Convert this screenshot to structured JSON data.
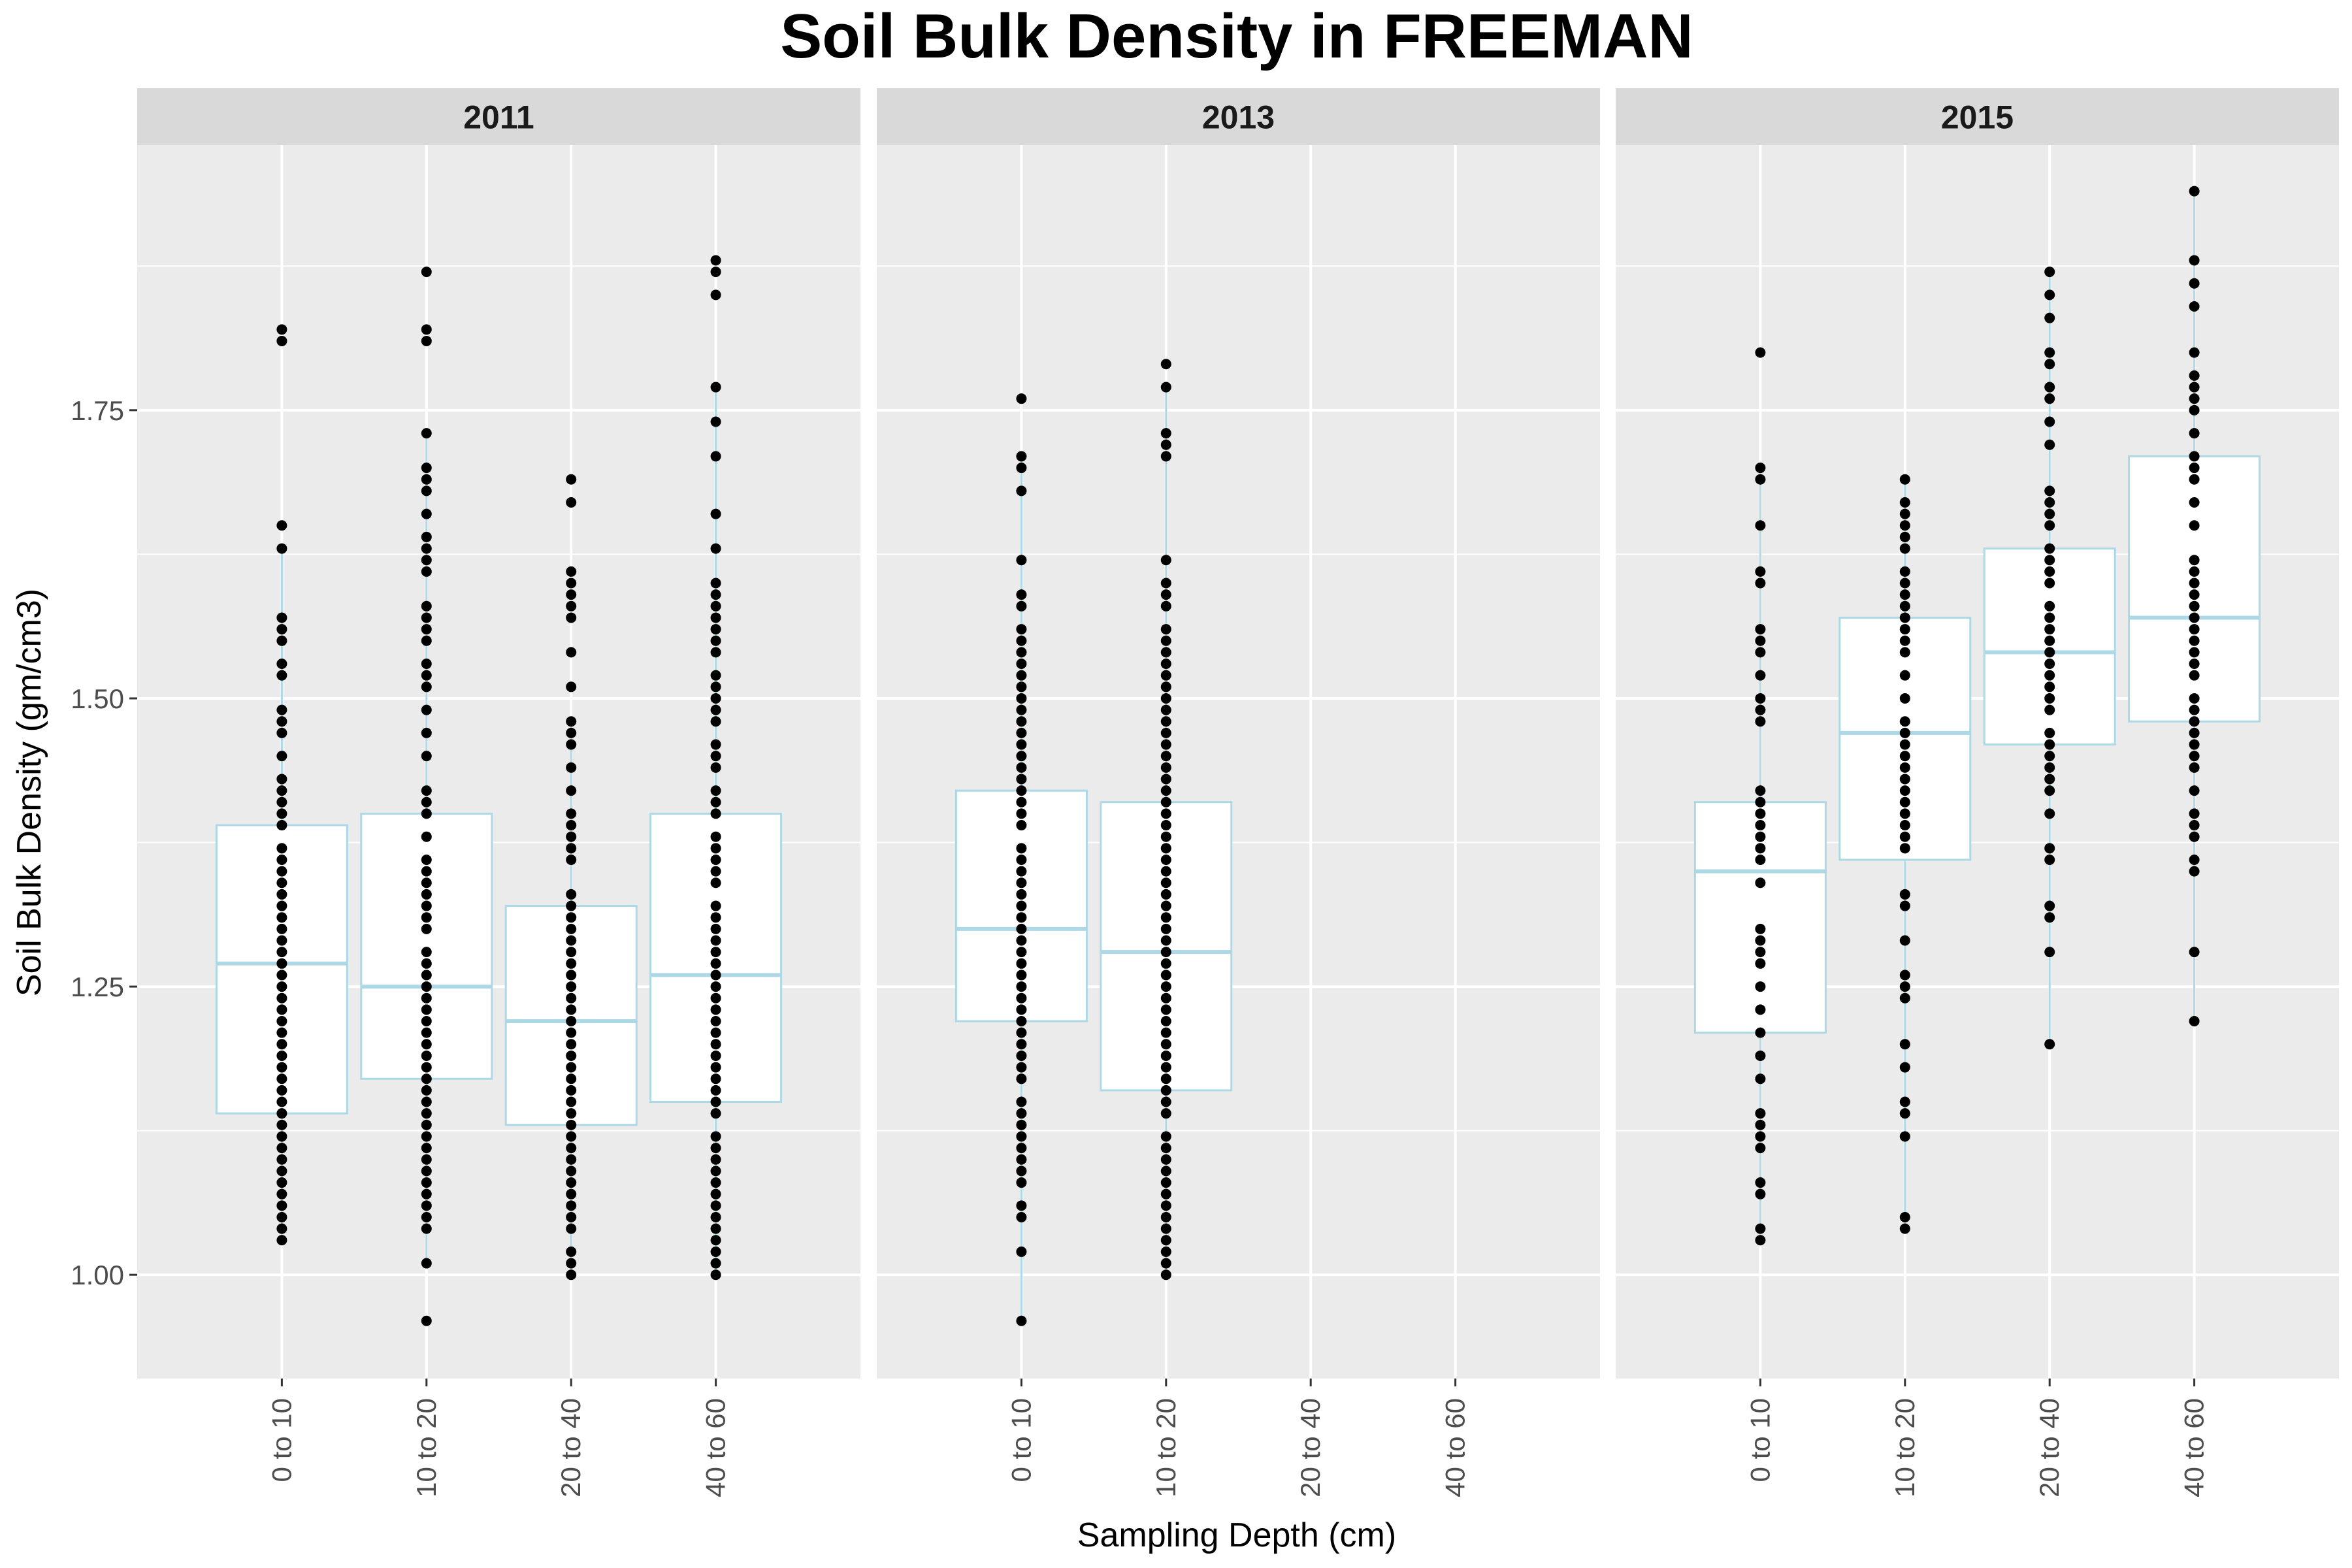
{
  "chart_data": {
    "type": "boxplot",
    "title": "Soil Bulk Density in FREEMAN",
    "xlabel": "Sampling Depth (cm)",
    "ylabel": "Soil Bulk Density (gm/cm3)",
    "ylim": [
      0.91,
      1.98
    ],
    "yticks": [
      1.0,
      1.25,
      1.5,
      1.75
    ],
    "ytick_labels": [
      "1.00",
      "1.25",
      "1.50",
      "1.75"
    ],
    "categories": [
      "0 to 10",
      "10 to 20",
      "20 to 40",
      "40 to 60"
    ],
    "colors": {
      "panel_bg": "#ebebeb",
      "strip_bg": "#d9d9d9",
      "grid": "#ffffff",
      "box_stroke": "#add8e6",
      "box_fill": "#ffffff",
      "point": "#000000"
    },
    "facets": [
      {
        "label": "2011",
        "boxes": [
          {
            "category": "0 to 10",
            "q1": 1.14,
            "median": 1.27,
            "q3": 1.39,
            "whisker_low": 1.03,
            "whisker_high": 1.63,
            "points": [
              1.03,
              1.04,
              1.05,
              1.06,
              1.07,
              1.08,
              1.09,
              1.1,
              1.11,
              1.12,
              1.13,
              1.14,
              1.15,
              1.16,
              1.17,
              1.18,
              1.19,
              1.2,
              1.21,
              1.22,
              1.23,
              1.24,
              1.25,
              1.26,
              1.27,
              1.28,
              1.29,
              1.3,
              1.31,
              1.32,
              1.33,
              1.34,
              1.35,
              1.36,
              1.37,
              1.39,
              1.4,
              1.41,
              1.42,
              1.43,
              1.45,
              1.47,
              1.48,
              1.49,
              1.52,
              1.53,
              1.55,
              1.56,
              1.57,
              1.63,
              1.65,
              1.81,
              1.82
            ]
          },
          {
            "category": "10 to 20",
            "q1": 1.17,
            "median": 1.25,
            "q3": 1.4,
            "whisker_low": 1.01,
            "whisker_high": 1.73,
            "points": [
              0.96,
              1.01,
              1.04,
              1.05,
              1.06,
              1.07,
              1.08,
              1.09,
              1.1,
              1.11,
              1.12,
              1.13,
              1.14,
              1.15,
              1.16,
              1.17,
              1.18,
              1.19,
              1.2,
              1.21,
              1.22,
              1.23,
              1.24,
              1.25,
              1.26,
              1.27,
              1.28,
              1.3,
              1.31,
              1.32,
              1.33,
              1.34,
              1.35,
              1.36,
              1.38,
              1.4,
              1.41,
              1.42,
              1.45,
              1.47,
              1.49,
              1.51,
              1.52,
              1.53,
              1.55,
              1.56,
              1.57,
              1.58,
              1.61,
              1.62,
              1.63,
              1.64,
              1.66,
              1.68,
              1.69,
              1.7,
              1.73,
              1.81,
              1.82,
              1.87
            ]
          },
          {
            "category": "20 to 40",
            "q1": 1.13,
            "median": 1.22,
            "q3": 1.32,
            "whisker_low": 1.0,
            "whisker_high": 1.48,
            "points": [
              1.0,
              1.01,
              1.02,
              1.04,
              1.05,
              1.06,
              1.07,
              1.08,
              1.09,
              1.1,
              1.11,
              1.12,
              1.13,
              1.14,
              1.15,
              1.16,
              1.17,
              1.18,
              1.19,
              1.2,
              1.21,
              1.22,
              1.23,
              1.24,
              1.25,
              1.26,
              1.27,
              1.28,
              1.29,
              1.3,
              1.31,
              1.32,
              1.33,
              1.36,
              1.37,
              1.38,
              1.39,
              1.4,
              1.42,
              1.44,
              1.46,
              1.47,
              1.48,
              1.51,
              1.54,
              1.57,
              1.58,
              1.59,
              1.6,
              1.61,
              1.67,
              1.69
            ]
          },
          {
            "category": "40 to 60",
            "q1": 1.15,
            "median": 1.26,
            "q3": 1.4,
            "whisker_low": 1.0,
            "whisker_high": 1.77,
            "points": [
              1.0,
              1.01,
              1.02,
              1.03,
              1.04,
              1.05,
              1.06,
              1.07,
              1.08,
              1.09,
              1.1,
              1.11,
              1.12,
              1.14,
              1.15,
              1.16,
              1.17,
              1.18,
              1.19,
              1.2,
              1.21,
              1.22,
              1.23,
              1.24,
              1.25,
              1.26,
              1.27,
              1.28,
              1.29,
              1.3,
              1.31,
              1.32,
              1.34,
              1.35,
              1.36,
              1.37,
              1.38,
              1.4,
              1.41,
              1.42,
              1.44,
              1.45,
              1.46,
              1.48,
              1.49,
              1.5,
              1.51,
              1.52,
              1.54,
              1.55,
              1.56,
              1.57,
              1.58,
              1.59,
              1.6,
              1.63,
              1.66,
              1.71,
              1.74,
              1.77,
              1.85,
              1.87,
              1.88
            ]
          }
        ]
      },
      {
        "label": "2013",
        "boxes": [
          {
            "category": "0 to 10",
            "q1": 1.22,
            "median": 1.3,
            "q3": 1.42,
            "whisker_low": 0.96,
            "whisker_high": 1.71,
            "points": [
              0.96,
              1.02,
              1.05,
              1.06,
              1.08,
              1.09,
              1.1,
              1.11,
              1.12,
              1.13,
              1.14,
              1.15,
              1.17,
              1.18,
              1.19,
              1.2,
              1.21,
              1.22,
              1.23,
              1.24,
              1.25,
              1.26,
              1.27,
              1.28,
              1.29,
              1.3,
              1.31,
              1.32,
              1.33,
              1.34,
              1.35,
              1.36,
              1.37,
              1.39,
              1.4,
              1.41,
              1.42,
              1.43,
              1.44,
              1.45,
              1.46,
              1.47,
              1.48,
              1.49,
              1.5,
              1.51,
              1.52,
              1.53,
              1.54,
              1.55,
              1.56,
              1.58,
              1.59,
              1.62,
              1.68,
              1.7,
              1.71,
              1.76
            ]
          },
          {
            "category": "10 to 20",
            "q1": 1.16,
            "median": 1.28,
            "q3": 1.41,
            "whisker_low": 1.0,
            "whisker_high": 1.77,
            "points": [
              1.0,
              1.01,
              1.02,
              1.03,
              1.04,
              1.05,
              1.06,
              1.07,
              1.08,
              1.09,
              1.1,
              1.11,
              1.12,
              1.14,
              1.15,
              1.16,
              1.17,
              1.18,
              1.19,
              1.2,
              1.21,
              1.22,
              1.23,
              1.24,
              1.25,
              1.26,
              1.27,
              1.28,
              1.29,
              1.3,
              1.31,
              1.32,
              1.33,
              1.34,
              1.35,
              1.36,
              1.37,
              1.38,
              1.39,
              1.4,
              1.41,
              1.42,
              1.43,
              1.44,
              1.45,
              1.46,
              1.47,
              1.48,
              1.49,
              1.5,
              1.51,
              1.52,
              1.53,
              1.54,
              1.55,
              1.56,
              1.58,
              1.59,
              1.6,
              1.62,
              1.71,
              1.72,
              1.73,
              1.77,
              1.79
            ]
          }
        ]
      },
      {
        "label": "2015",
        "boxes": [
          {
            "category": "0 to 10",
            "q1": 1.21,
            "median": 1.35,
            "q3": 1.41,
            "whisker_low": 1.03,
            "whisker_high": 1.7,
            "points": [
              1.03,
              1.04,
              1.07,
              1.08,
              1.11,
              1.12,
              1.13,
              1.14,
              1.17,
              1.19,
              1.21,
              1.23,
              1.25,
              1.27,
              1.28,
              1.29,
              1.3,
              1.34,
              1.36,
              1.37,
              1.38,
              1.39,
              1.4,
              1.41,
              1.42,
              1.48,
              1.49,
              1.5,
              1.52,
              1.54,
              1.55,
              1.56,
              1.6,
              1.61,
              1.65,
              1.69,
              1.7,
              1.8
            ]
          },
          {
            "category": "10 to 20",
            "q1": 1.36,
            "median": 1.47,
            "q3": 1.57,
            "whisker_low": 1.04,
            "whisker_high": 1.69,
            "points": [
              1.04,
              1.05,
              1.12,
              1.14,
              1.15,
              1.18,
              1.2,
              1.24,
              1.25,
              1.26,
              1.29,
              1.32,
              1.33,
              1.37,
              1.38,
              1.39,
              1.4,
              1.41,
              1.42,
              1.43,
              1.44,
              1.45,
              1.46,
              1.47,
              1.48,
              1.5,
              1.52,
              1.54,
              1.55,
              1.56,
              1.57,
              1.58,
              1.59,
              1.6,
              1.61,
              1.63,
              1.64,
              1.65,
              1.66,
              1.67,
              1.69
            ]
          },
          {
            "category": "20 to 40",
            "q1": 1.46,
            "median": 1.54,
            "q3": 1.63,
            "whisker_low": 1.2,
            "whisker_high": 1.87,
            "points": [
              1.2,
              1.28,
              1.31,
              1.32,
              1.36,
              1.37,
              1.4,
              1.42,
              1.43,
              1.44,
              1.45,
              1.46,
              1.47,
              1.49,
              1.5,
              1.51,
              1.52,
              1.53,
              1.54,
              1.55,
              1.56,
              1.57,
              1.58,
              1.6,
              1.61,
              1.62,
              1.63,
              1.65,
              1.66,
              1.67,
              1.68,
              1.72,
              1.74,
              1.76,
              1.77,
              1.79,
              1.8,
              1.83,
              1.85,
              1.87
            ]
          },
          {
            "category": "40 to 60",
            "q1": 1.48,
            "median": 1.57,
            "q3": 1.71,
            "whisker_low": 1.22,
            "whisker_high": 1.94,
            "points": [
              1.22,
              1.28,
              1.35,
              1.36,
              1.38,
              1.39,
              1.4,
              1.42,
              1.44,
              1.45,
              1.46,
              1.47,
              1.48,
              1.49,
              1.5,
              1.52,
              1.53,
              1.54,
              1.55,
              1.56,
              1.57,
              1.58,
              1.59,
              1.6,
              1.61,
              1.62,
              1.65,
              1.67,
              1.69,
              1.7,
              1.71,
              1.73,
              1.75,
              1.76,
              1.77,
              1.78,
              1.8,
              1.84,
              1.86,
              1.88,
              1.94
            ]
          }
        ]
      }
    ]
  }
}
